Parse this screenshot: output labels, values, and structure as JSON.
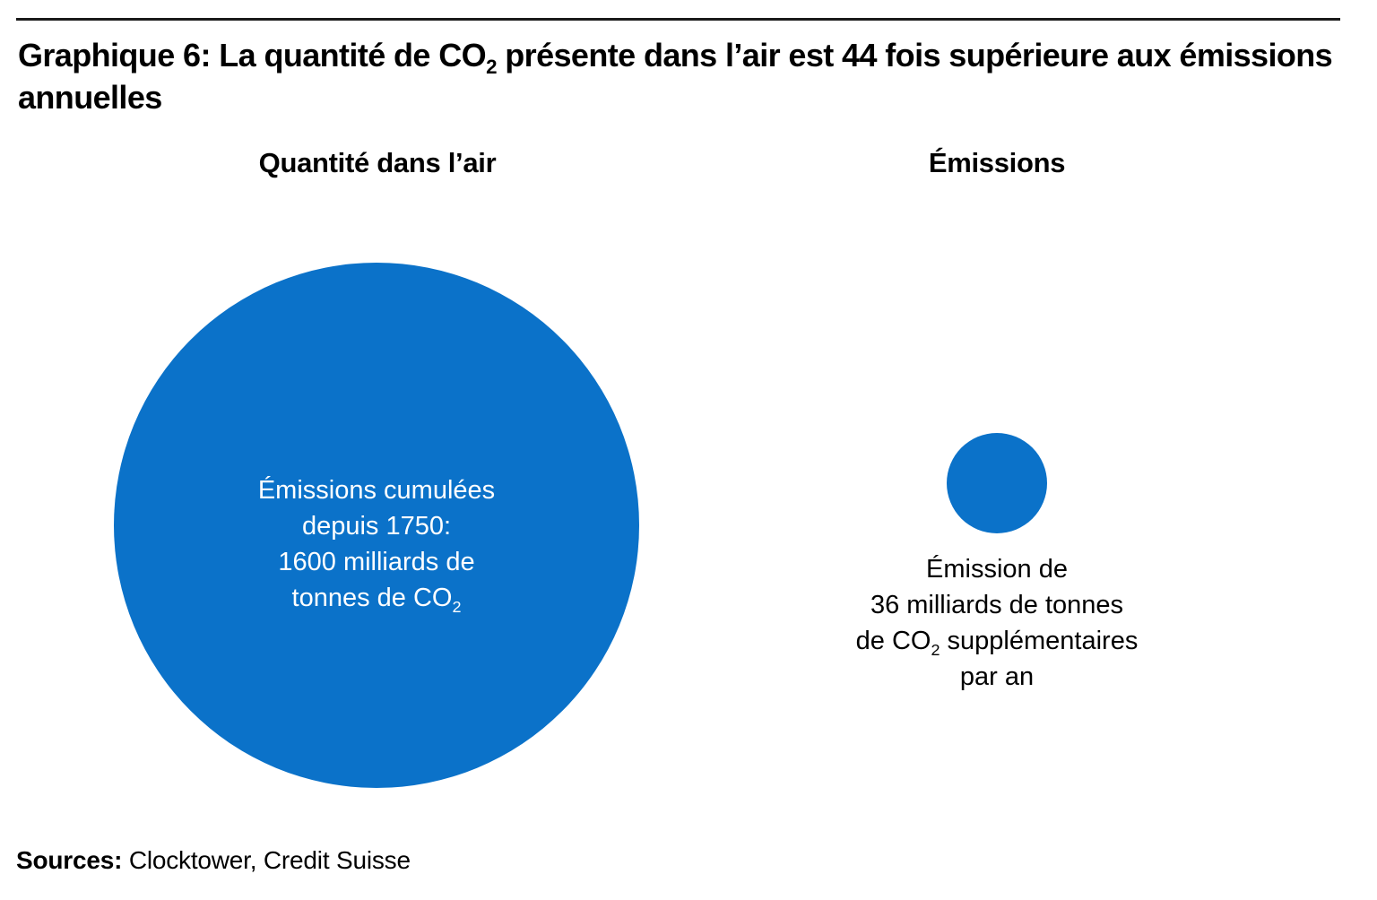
{
  "accent_color": "#0B72C9",
  "title": {
    "prefix": "Graphique 6: La quantité de CO",
    "subscript": "2",
    "suffix": " présente dans l’air est 44 fois supérieure aux émissions annuelles"
  },
  "columns": {
    "left_header": "Quantité dans l’air",
    "right_header": "Émissions"
  },
  "big_bubble": {
    "line1": "Émissions cumulées",
    "line2": "depuis 1750:",
    "line3": "1600 milliards de",
    "line4_pre": "tonnes de CO",
    "line4_sub": "2"
  },
  "small_bubble": {
    "line1": "Émission de",
    "line2": "36 milliards de tonnes",
    "line3_pre": "de CO",
    "line3_sub": "2",
    "line3_post": " supplémentaires",
    "line4": "par an"
  },
  "sources": {
    "label": "Sources:",
    "text": " Clocktower, Credit Suisse"
  },
  "chart_data": {
    "type": "bubble",
    "title": "Graphique 6: La quantité de CO2 présente dans l’air est 44 fois supérieure aux émissions annuelles",
    "categories": [
      "Quantité dans l’air",
      "Émissions"
    ],
    "values": [
      1600,
      36
    ],
    "unit": "milliards de tonnes de CO2",
    "ratio_stated": 44,
    "annotations": [
      "Émissions cumulées depuis 1750: 1600 milliards de tonnes de CO2",
      "Émission de 36 milliards de tonnes de CO2 supplémentaires par an"
    ],
    "legend": "none",
    "grid": false,
    "bubble_color": "#0B72C9"
  }
}
